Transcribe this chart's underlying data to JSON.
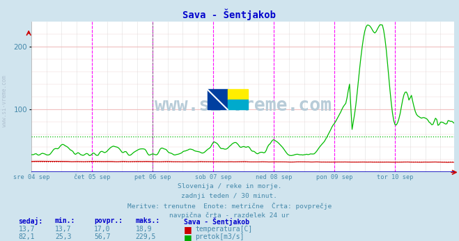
{
  "title": "Sava - Šentjakob",
  "background_color": "#d0e4ee",
  "plot_bg_color": "#ffffff",
  "grid_color_h": "#f0b0b0",
  "grid_color_v": "#e8e8e8",
  "ylim": [
    0,
    240
  ],
  "yticks": [
    100,
    200
  ],
  "subtitle_lines": [
    "Slovenija / reke in morje.",
    "zadnji teden / 30 minut.",
    "Meritve: trenutne  Enote: metrične  Črta: povprečje",
    "navpična črta - razdelek 24 ur"
  ],
  "watermark": "www.si-vreme.com",
  "title_color": "#0000cc",
  "subtitle_color": "#4488aa",
  "watermark_color": "#b8ccd8",
  "axis_label_color": "#4488aa",
  "stats_label_color": "#0000cc",
  "avg_temp_line": 17.0,
  "avg_flow_line": 56.7,
  "n_points": 336,
  "day_labels": [
    "sre 04 sep",
    "čet 05 sep",
    "pet 06 sep",
    "sob 07 sep",
    "ned 08 sep",
    "pon 09 sep",
    "tor 10 sep"
  ],
  "day_positions": [
    0,
    48,
    96,
    144,
    192,
    240,
    288
  ],
  "vline_color": "#ff00ff",
  "vline_dark_color": "#666666",
  "temp_line_color": "#cc0000",
  "flow_line_color": "#00bb00",
  "temp_stats": [
    "13,7",
    "13,7",
    "17,0",
    "18,9"
  ],
  "flow_stats": [
    "82,1",
    "25,3",
    "56,7",
    "229,5"
  ],
  "stats_headers": [
    "sedaj:",
    "min.:",
    "povpr.:",
    "maks.:",
    "Sava - Šentjakob"
  ],
  "legend_temp": "temperatura[C]",
  "legend_flow": "pretok[m3/s]",
  "logo_colors": [
    "#0044aa",
    "#ffee00",
    "#00aacc",
    "#0044aa"
  ],
  "side_watermark": "www.si-vreme.com"
}
